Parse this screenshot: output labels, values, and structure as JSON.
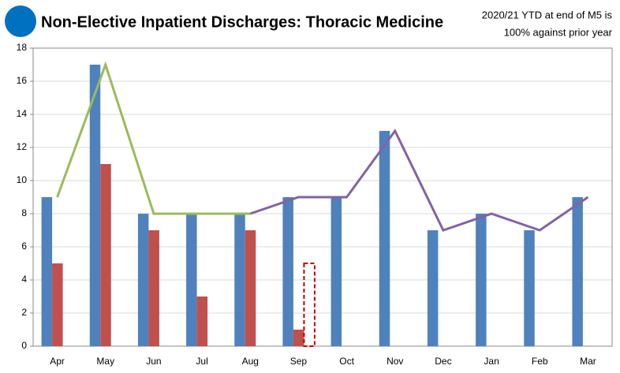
{
  "chart_data": {
    "type": "bar",
    "title": "Non-Elective Inpatient Discharges: Thoracic Medicine",
    "annotation": [
      "2020/21 YTD at end of M5 is",
      "100% against prior year"
    ],
    "categories": [
      "Apr",
      "May",
      "Jun",
      "Jul",
      "Aug",
      "Sep",
      "Oct",
      "Nov",
      "Dec",
      "Jan",
      "Feb",
      "Mar"
    ],
    "series": [
      {
        "type": "bar",
        "color": "#4f81bd",
        "values": [
          9,
          17,
          8,
          8,
          8,
          9,
          9,
          13,
          7,
          8,
          7,
          9
        ]
      },
      {
        "type": "bar",
        "color": "#c0504d",
        "values": [
          5,
          11,
          7,
          3,
          7,
          1,
          null,
          null,
          null,
          null,
          null,
          null
        ]
      },
      {
        "type": "bar",
        "color": "#c00000",
        "style": "dashed",
        "values": [
          null,
          null,
          null,
          null,
          null,
          5,
          null,
          null,
          null,
          null,
          null,
          null
        ]
      },
      {
        "type": "line",
        "color": "#9bbb59",
        "values": [
          9,
          17,
          8,
          8,
          8,
          null,
          null,
          null,
          null,
          null,
          null,
          null
        ]
      },
      {
        "type": "line",
        "color": "#8064a2",
        "values": [
          null,
          null,
          null,
          null,
          8,
          9,
          9,
          13,
          7,
          8,
          7,
          9
        ]
      }
    ],
    "ylim": [
      0,
      18
    ],
    "yticks": [
      0,
      2,
      4,
      6,
      8,
      10,
      12,
      14,
      16,
      18
    ],
    "grid": true
  }
}
